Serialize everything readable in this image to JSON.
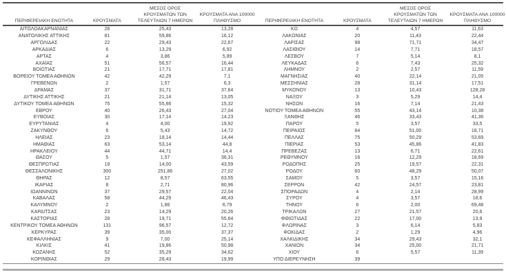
{
  "colors": {
    "background": "#ffffff",
    "text": "#3d3d3d",
    "rule_dark": "#4f4f4f",
    "rule_mid": "#828282",
    "rule_light": "#b3b3b3"
  },
  "table": {
    "headers": {
      "region": "ΠΕΡΙΦΕΡΕΙΑΚΗ ΕΝΟΤΗΤΑ",
      "cases": "ΚΡΟΥΣΜΑΤΑ",
      "avg7_lines": [
        "ΜΕΣΟΣ ΟΡΟΣ",
        "ΚΡΟΥΣΜΑΤΩΝ ΤΩΝ",
        "ΤΕΛΕΥΤΑΙΩΝ 7 ΗΜΕΡΩΝ"
      ],
      "per100k_lines": [
        "ΚΡΟΥΣΜΑΤΑ ΑΝΑ 100000",
        "ΠΛΗΘΥΣΜΟ"
      ]
    },
    "left_rows": [
      [
        "ΑΙΤΩΛΟΑΚΑΡΝΑΝΙΑΣ",
        "28",
        "25,43",
        "13,28"
      ],
      [
        "ΑΝΑΤΟΛΙΚΗΣ ΑΤΤΙΚΗΣ",
        "81",
        "59,86",
        "16,12"
      ],
      [
        "ΑΡΓΟΛΙΔΑΣ",
        "22",
        "29,43",
        "22,67"
      ],
      [
        "ΑΡΚΑΔΙΑΣ",
        "6",
        "13,29",
        "6,92"
      ],
      [
        "ΑΡΤΑΣ",
        "4",
        "3,86",
        "5,89"
      ],
      [
        "ΑΧΑΪΑΣ",
        "51",
        "56,57",
        "16,44"
      ],
      [
        "ΒΟΙΩΤΙΑΣ",
        "21",
        "17,71",
        "17,81"
      ],
      [
        "ΒΟΡΕΙΟΥ ΤΟΜΕΑ ΑΘΗΝΩΝ",
        "42",
        "42,29",
        "7,1"
      ],
      [
        "ΓΡΕΒΕΝΩΝ",
        "2",
        "1,57",
        "6,3"
      ],
      [
        "ΔΡΑΜΑΣ",
        "37",
        "31,71",
        "37,64"
      ],
      [
        "ΔΥΤΙΚΗΣ ΑΤΤΙΚΗΣ",
        "21",
        "21,14",
        "13,05"
      ],
      [
        "ΔΥΤΙΚΟΥ ΤΟΜΕΑ ΑΘΗΝΩΝ",
        "75",
        "55,86",
        "15,32"
      ],
      [
        "ΕΒΡΟΥ",
        "40",
        "26,43",
        "27,04"
      ],
      [
        "ΕΥΒΟΙΑΣ",
        "30",
        "17,14",
        "14,23"
      ],
      [
        "ΕΥΡΥΤΑΝΙΑΣ",
        "4",
        "4,00",
        "19,92"
      ],
      [
        "ΖΑΚΥΝΘΟΥ",
        "6",
        "5,43",
        "14,72"
      ],
      [
        "ΗΛΕΙΑΣ",
        "23",
        "18,14",
        "14,44"
      ],
      [
        "ΗΜΑΘΙΑΣ",
        "63",
        "53,14",
        "44,8"
      ],
      [
        "ΗΡΑΚΛΕΙΟΥ",
        "44",
        "44,71",
        "14,4"
      ],
      [
        "ΘΑΣΟΥ",
        "5",
        "1,57",
        "36,31"
      ],
      [
        "ΘΕΣΠΡΩΤΙΑΣ",
        "19",
        "14,00",
        "43,59"
      ],
      [
        "ΘΕΣΣΑΛΟΝΙΚΗΣ",
        "300",
        "251,86",
        "27,02"
      ],
      [
        "ΘΗΡΑΣ",
        "12",
        "8,57",
        "63,55"
      ],
      [
        "ΙΚΑΡΙΑΣ",
        "8",
        "2,71",
        "80,96"
      ],
      [
        "ΙΩΑΝΝΙΝΩΝ",
        "37",
        "29,57",
        "22,04"
      ],
      [
        "ΚΑΒΑΛΑΣ",
        "58",
        "44,29",
        "46,43"
      ],
      [
        "ΚΑΛΥΜΝΟΥ",
        "2",
        "1,86",
        "6,79"
      ],
      [
        "ΚΑΡΔΙΤΣΑΣ",
        "23",
        "14,29",
        "20,26"
      ],
      [
        "ΚΑΣΤΟΡΙΑΣ",
        "28",
        "19,71",
        "55,64"
      ],
      [
        "ΚΕΝΤΡΙΚΟΥ ΤΟΜΕΑ ΑΘΗΝΩΝ",
        "131",
        "96,57",
        "12,72"
      ],
      [
        "ΚΕΡΚΥΡΑΣ",
        "39",
        "35,00",
        "37,37"
      ],
      [
        "ΚΕΦΑΛΛΗΝΙΑΣ",
        "9",
        "7,00",
        "25,14"
      ],
      [
        "ΚΙΛΚΙΣ",
        "41",
        "19,86",
        "50,98"
      ],
      [
        "ΚΟΖΑΝΗΣ",
        "52",
        "35,29",
        "34,62"
      ],
      [
        "ΚΟΡΙΝΘΙΑΣ",
        "29",
        "28,43",
        "19,99"
      ]
    ],
    "right_rows": [
      [
        "ΚΩ",
        "4",
        "4,57",
        "11,63"
      ],
      [
        "ΛΑΚΩΝΙΑΣ",
        "20",
        "11,43",
        "22,44"
      ],
      [
        "ΛΑΡΙΣΑΣ",
        "98",
        "71,71",
        "34,47"
      ],
      [
        "ΛΑΣΙΘΙΟΥ",
        "14",
        "7,71",
        "18,57"
      ],
      [
        "ΛΕΣΒΟΥ",
        "7",
        "5,14",
        "8,1"
      ],
      [
        "ΛΕΥΚΑΔΑΣ",
        "6",
        "7,43",
        "25,32"
      ],
      [
        "ΛΗΜΝΟΥ",
        "2",
        "2,57",
        "11,59"
      ],
      [
        "ΜΑΓΝΗΣΙΑΣ",
        "40",
        "22,14",
        "21,05"
      ],
      [
        "ΜΕΣΣΗΝΙΑΣ",
        "28",
        "31,14",
        "17,51"
      ],
      [
        "ΜΥΚΟΝΟΥ",
        "13",
        "10,43",
        "128,28"
      ],
      [
        "ΝΑΞΟΥ",
        "3",
        "5,29",
        "14,4"
      ],
      [
        "ΝΗΣΩΝ",
        "16",
        "7,14",
        "21,43"
      ],
      [
        "ΝΟΤΙΟΥ ΤΟΜΕΑ ΑΘΗΝΩΝ",
        "55",
        "43,14",
        "10,38"
      ],
      [
        "ΞΑΝΘΗΣ",
        "46",
        "33,43",
        "41,36"
      ],
      [
        "ΠΑΡΟΥ",
        "5",
        "3,57",
        "33,5"
      ],
      [
        "ΠΕΙΡΑΙΩΣ",
        "84",
        "51,00",
        "18,71"
      ],
      [
        "ΠΕΛΛΑΣ",
        "75",
        "50,29",
        "53,69"
      ],
      [
        "ΠΙΕΡΙΑΣ",
        "53",
        "45,86",
        "41,83"
      ],
      [
        "ΠΡΕΒΕΖΑΣ",
        "13",
        "6,71",
        "22,61"
      ],
      [
        "ΡΕΘΥΜΝΟΥ",
        "16",
        "12,29",
        "18,69"
      ],
      [
        "ΡΟΔΟΠΗΣ",
        "25",
        "19,57",
        "22,31"
      ],
      [
        "ΡΟΔΟΥ",
        "60",
        "48,29",
        "50,07"
      ],
      [
        "ΣΑΜΟΥ",
        "5",
        "3,57",
        "15,16"
      ],
      [
        "ΣΕΡΡΩΝ",
        "42",
        "24,57",
        "23,81"
      ],
      [
        "ΣΠΟΡΑΔΩΝ",
        "4",
        "2,14",
        "28,99"
      ],
      [
        "ΣΥΡΟΥ",
        "4",
        "3,57",
        "18,6"
      ],
      [
        "ΤΗΝΟΥ",
        "6",
        "2,00",
        "69,48"
      ],
      [
        "ΤΡΙΚΑΛΩΝ",
        "27",
        "21,57",
        "20,6"
      ],
      [
        "ΦΘΙΩΤΙΔΑΣ",
        "22",
        "17,00",
        "13,9"
      ],
      [
        "ΦΛΩΡΙΝΑΣ",
        "3",
        "6,14",
        "5,83"
      ],
      [
        "ΦΩΚΙΔΑΣ",
        "2",
        "1,29",
        "4,96"
      ],
      [
        "ΧΑΛΚΙΔΙΚΗΣ",
        "34",
        "29,43",
        "32,1"
      ],
      [
        "ΧΑΝΙΩΝ",
        "34",
        "25,00",
        "21,71"
      ],
      [
        "ΧΙΟΥ",
        "6",
        "5,57",
        "11,39"
      ],
      [
        "ΥΠΟ ΔΙΕΡΕΥΝΗΣΗ",
        "39",
        "",
        ""
      ]
    ]
  }
}
